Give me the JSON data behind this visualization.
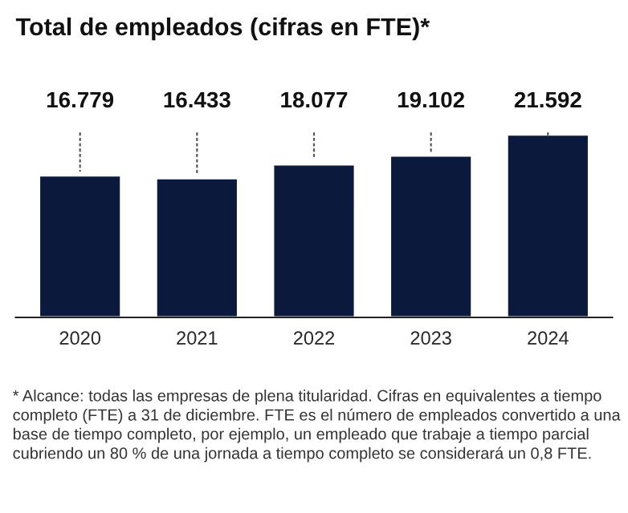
{
  "chart_data": {
    "type": "bar",
    "title": "Total de empleados (cifras en FTE)*",
    "categories": [
      "2020",
      "2021",
      "2022",
      "2023",
      "2024"
    ],
    "values": [
      16779,
      16433,
      18077,
      19102,
      21592
    ],
    "value_labels": [
      "16.779",
      "16.433",
      "18.077",
      "19.102",
      "21.592"
    ],
    "color": "#0b1a3c",
    "grid": false,
    "legend": false,
    "tick_labels": "x",
    "annotations": [
      "* Alcance: todas las empresas de plena titularidad. Cifras en equivalentes a tiempo completo (FTE) a 31 de diciembre. FTE es el número de empleados convertido a una base de tiempo completo, por ejemplo, un empleado que trabaje a tiempo parcial cubriendo un 80 % de una jornada a tiempo completo se considerará un 0,8 FTE."
    ]
  }
}
